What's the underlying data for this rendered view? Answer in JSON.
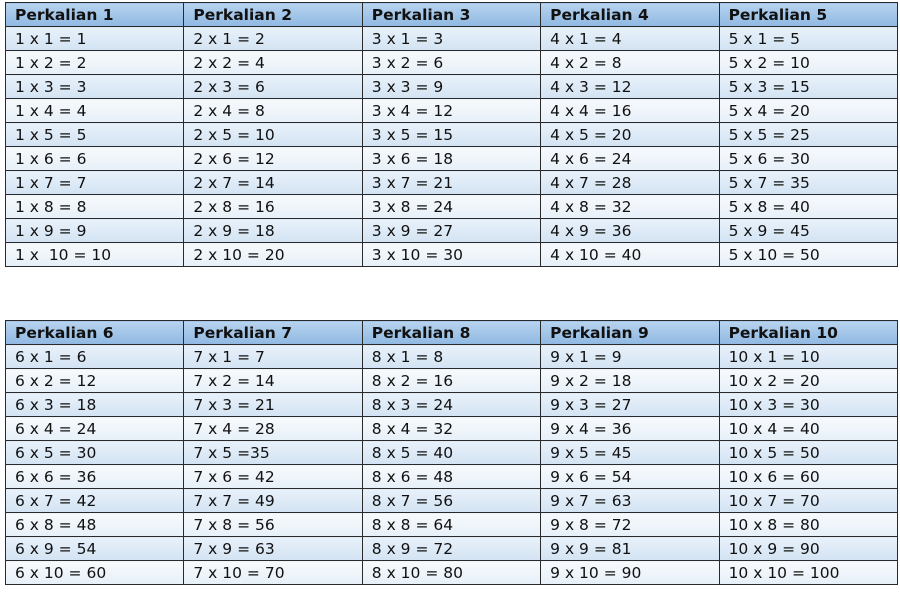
{
  "tables": [
    {
      "header": [
        "Perkalian 1",
        "Perkalian 2",
        "Perkalian 3",
        "Perkalian 4",
        "Perkalian 5"
      ],
      "rows": [
        [
          "1 x 1 = 1",
          "2 x 1 = 2",
          "3 x 1 = 3",
          "4 x 1 = 4",
          "5 x 1 = 5"
        ],
        [
          "1 x 2 = 2",
          "2 x 2 = 4",
          "3 x 2 = 6",
          "4 x 2 = 8",
          "5 x 2 = 10"
        ],
        [
          "1 x 3 = 3",
          "2 x 3 = 6",
          "3 x 3 = 9",
          "4 x 3 = 12",
          "5 x 3 = 15"
        ],
        [
          "1 x 4 = 4",
          "2 x 4 = 8",
          "3 x 4 = 12",
          "4 x 4 = 16",
          "5 x 4 = 20"
        ],
        [
          "1 x 5 = 5",
          "2 x 5 = 10",
          "3 x 5 = 15",
          "4 x 5 = 20",
          "5 x 5 = 25"
        ],
        [
          "1 x 6 = 6",
          "2 x 6 = 12",
          "3 x 6 = 18",
          "4 x 6 = 24",
          "5 x 6 = 30"
        ],
        [
          "1 x 7 = 7",
          "2 x 7 = 14",
          "3 x 7 = 21",
          "4 x 7 = 28",
          "5 x 7 = 35"
        ],
        [
          "1 x 8 = 8",
          "2 x 8 = 16",
          "3 x 8 = 24",
          "4 x 8 = 32",
          "5 x 8 = 40"
        ],
        [
          "1 x 9 = 9",
          "2 x 9 = 18",
          "3 x 9 = 27",
          "4 x 9 = 36",
          "5 x 9 = 45"
        ],
        [
          "1 x  10 = 10",
          "2 x 10 = 20",
          "3 x 10 = 30",
          "4 x 10 = 40",
          "5 x 10 = 50"
        ]
      ]
    },
    {
      "header": [
        "Perkalian 6",
        "Perkalian 7",
        "Perkalian 8",
        "Perkalian 9",
        "Perkalian 10"
      ],
      "rows": [
        [
          "6 x 1 = 6",
          "7 x 1 = 7",
          "8 x 1 = 8",
          "9 x 1 = 9",
          "10 x 1 = 10"
        ],
        [
          "6 x 2 = 12",
          "7 x 2 = 14",
          "8 x 2 = 16",
          "9 x 2 = 18",
          "10 x 2 = 20"
        ],
        [
          "6 x 3 = 18",
          "7 x 3 = 21",
          "8 x 3 = 24",
          "9 x 3 = 27",
          "10 x 3 = 30"
        ],
        [
          "6 x 4 = 24",
          "7 x 4 = 28",
          "8 x 4 = 32",
          "9 x 4 = 36",
          "10 x 4 = 40"
        ],
        [
          "6 x 5 = 30",
          "7 x 5 =35",
          "8 x 5 = 40",
          "9 x 5 = 45",
          "10 x 5 = 50"
        ],
        [
          "6 x 6 = 36",
          "7 x 6 = 42",
          "8 x 6 = 48",
          "9 x 6 = 54",
          "10 x 6 = 60"
        ],
        [
          "6 x 7 = 42",
          "7 x 7 = 49",
          "8 x 7 = 56",
          "9 x 7 = 63",
          "10 x 7 = 70"
        ],
        [
          "6 x 8 = 48",
          "7 x 8 = 56",
          "8 x 8 = 64",
          "9 x 8 = 72",
          "10 x 8 = 80"
        ],
        [
          "6 x 9 = 54",
          "7 x 9 = 63",
          "8 x 9 = 72",
          "9 x 9 = 81",
          "10 x 9 = 90"
        ],
        [
          "6 x 10 = 60",
          "7 x 10 = 70",
          "8 x 10 = 80",
          "9 x 10 = 90",
          "10 x 10 = 100"
        ]
      ]
    }
  ]
}
